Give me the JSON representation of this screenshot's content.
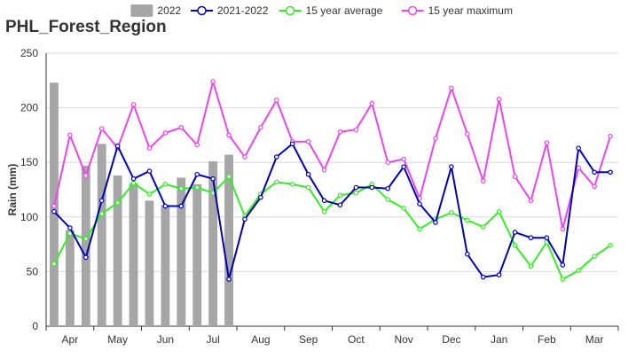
{
  "chart_data": {
    "type": "bar+line",
    "title": "PHL_Forest_Region",
    "ylabel": "Rain (mm)",
    "xlabel": "",
    "ylim": [
      0,
      250
    ],
    "yticks": [
      0,
      50,
      100,
      150,
      200,
      250
    ],
    "month_labels": [
      "Apr",
      "May",
      "Jun",
      "Jul",
      "Aug",
      "Sep",
      "Oct",
      "Nov",
      "Dec",
      "Jan",
      "Feb",
      "Mar"
    ],
    "grid": true,
    "legend_position": "top",
    "bar_series": {
      "name": "2022",
      "color": "#a6a6a6",
      "values": [
        223,
        88,
        147,
        167,
        138,
        131,
        115,
        111,
        136,
        130,
        151,
        157
      ]
    },
    "line_series": [
      {
        "name": "2021-2022",
        "color": "#0000b4",
        "values": [
          105,
          90,
          63,
          115,
          165,
          135,
          142,
          110,
          110,
          139,
          135,
          43,
          98,
          118,
          155,
          167,
          139,
          115,
          111,
          127,
          127,
          126,
          146,
          112,
          95,
          146,
          66,
          45,
          47,
          86,
          81,
          81,
          56,
          163,
          141,
          141
        ]
      },
      {
        "name": "15 year average",
        "color": "#33ee22",
        "values": [
          57,
          85,
          80,
          103,
          113,
          131,
          121,
          130,
          126,
          127,
          122,
          137,
          101,
          121,
          132,
          130,
          127,
          105,
          120,
          122,
          130,
          116,
          108,
          89,
          98,
          104,
          97,
          91,
          105,
          74,
          55,
          77,
          43,
          51,
          64,
          74
        ]
      },
      {
        "name": "15 year maximum",
        "color": "#ee44ee",
        "values": [
          110,
          175,
          138,
          181,
          163,
          203,
          163,
          177,
          182,
          166,
          224,
          175,
          155,
          182,
          207,
          169,
          169,
          143,
          178,
          180,
          204,
          150,
          153,
          117,
          172,
          218,
          176,
          133,
          208,
          137,
          115,
          168,
          89,
          145,
          128,
          174
        ]
      }
    ]
  }
}
